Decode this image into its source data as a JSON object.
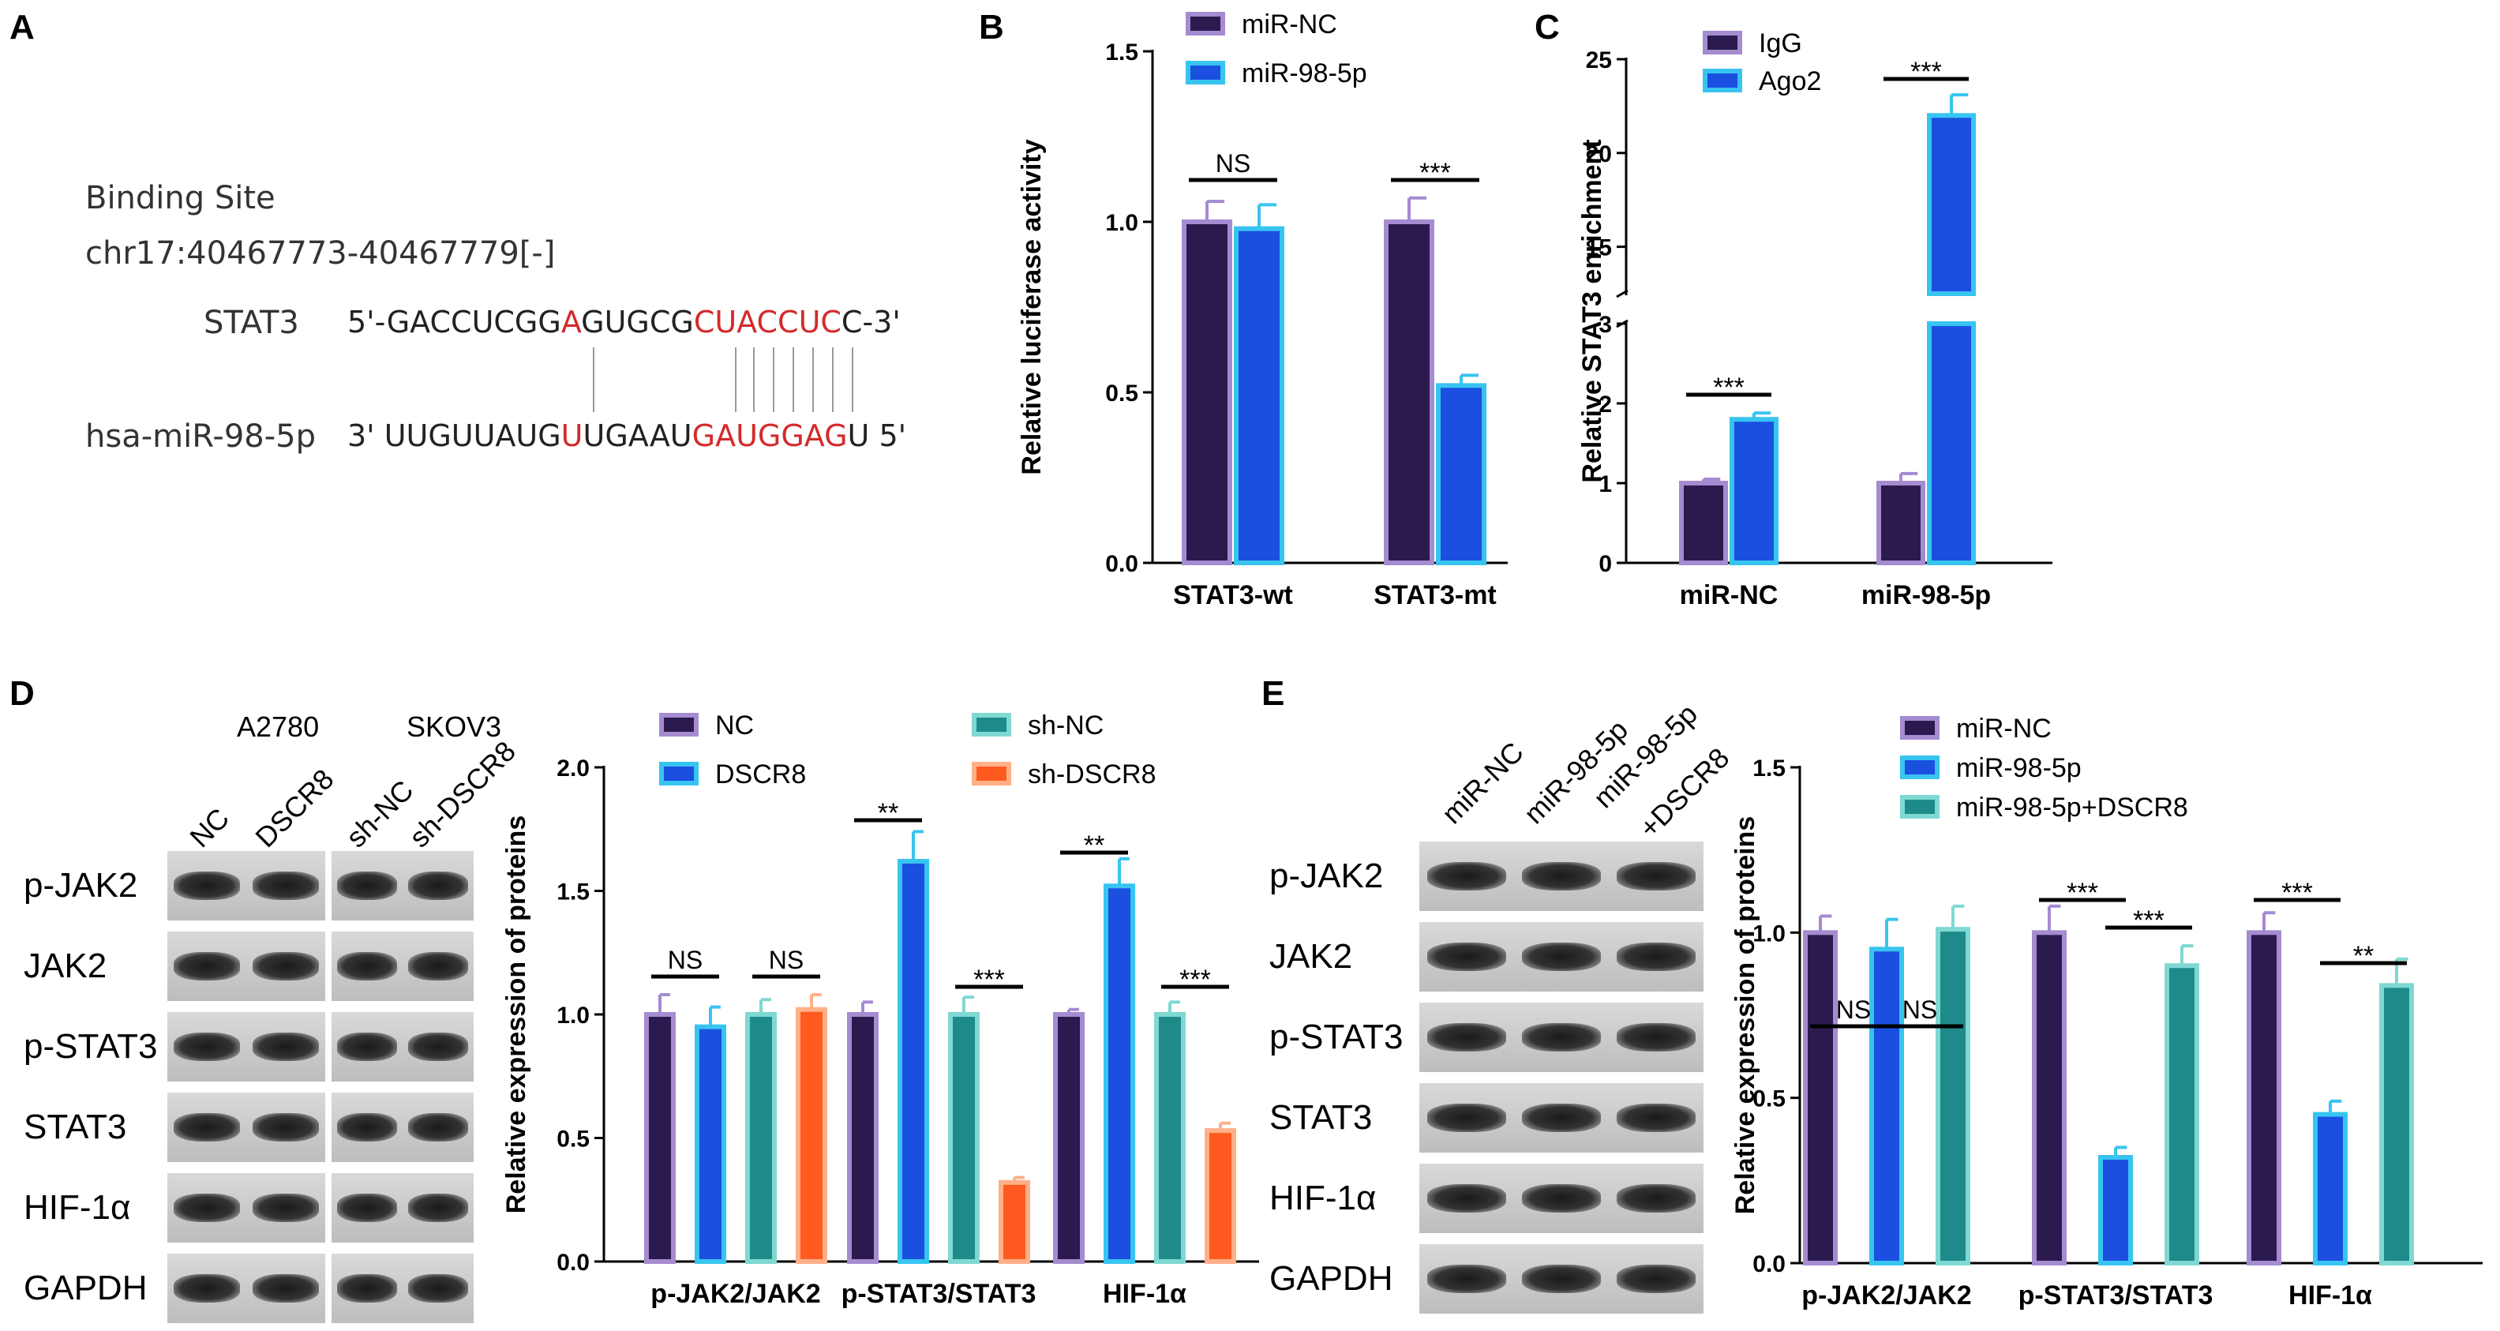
{
  "panels": {
    "A": "A",
    "B": "B",
    "C": "C",
    "D": "D",
    "E": "E"
  },
  "panelA": {
    "title": "Binding Site",
    "coords": "chr17:40467773-40467779[-]",
    "stat3_label": "STAT3",
    "stat3_seq": [
      {
        "t": "5'-GACCUCGG",
        "red": false
      },
      {
        "t": "A",
        "red": true
      },
      {
        "t": "GUGCG",
        "red": false
      },
      {
        "t": "CUACCUC",
        "red": true
      },
      {
        "t": "C-3'",
        "red": false
      }
    ],
    "mir_label": "hsa-miR-98-5p",
    "mir_seq": [
      {
        "t": "3' UUGUUAUG",
        "red": false
      },
      {
        "t": "U",
        "red": true
      },
      {
        "t": "UGAAU",
        "red": false
      },
      {
        "t": "GAUGGAG",
        "red": true
      },
      {
        "t": "U 5'",
        "red": false
      }
    ]
  },
  "panelD_blot": {
    "group1": "A2780",
    "group2": "SKOV3",
    "lanes": [
      "NC",
      "DSCR8",
      "sh-NC",
      "sh-DSCR8"
    ],
    "rows": [
      "p-JAK2",
      "JAK2",
      "p-STAT3",
      "STAT3",
      "HIF-1α",
      "GAPDH"
    ]
  },
  "panelE_blot": {
    "lanes": [
      "miR-NC",
      "miR-98-5p",
      "miR-98-5p",
      "+DSCR8"
    ],
    "rows": [
      "p-JAK2",
      "JAK2",
      "p-STAT3",
      "STAT3",
      "HIF-1α",
      "GAPDH"
    ]
  },
  "chart_data": [
    {
      "id": "B",
      "type": "bar",
      "categories": [
        "STAT3-wt",
        "STAT3-mt"
      ],
      "ylabel": "Relative luciferase activity",
      "ylim": [
        0,
        1.5
      ],
      "yticks": [
        "0.0",
        "0.5",
        "1.0",
        "1.5"
      ],
      "series": [
        {
          "name": "miR-NC",
          "values": [
            1.0,
            1.0
          ],
          "errors": [
            0.06,
            0.07
          ],
          "fill": "#2a1a4e",
          "edge": "#a58bd0"
        },
        {
          "name": "miR-98-5p",
          "values": [
            0.98,
            0.52
          ],
          "errors": [
            0.07,
            0.03
          ],
          "fill": "#1a4fe0",
          "edge": "#38c4f0"
        }
      ],
      "significance": [
        "NS",
        "***"
      ],
      "legend": "top"
    },
    {
      "id": "C",
      "type": "bar",
      "categories": [
        "miR-NC",
        "miR-98-5p"
      ],
      "ylabel": "Relative STAT3 enrichment",
      "axis_break": [
        3,
        12.5
      ],
      "yticks": [
        "0",
        "1",
        "2",
        "3",
        "15",
        "20",
        "25"
      ],
      "series": [
        {
          "name": "IgG",
          "values": [
            1.0,
            1.0
          ],
          "errors": [
            0.05,
            0.12
          ],
          "fill": "#2a1a4e",
          "edge": "#a58bd0"
        },
        {
          "name": "Ago2",
          "values": [
            1.8,
            22.0
          ],
          "errors": [
            0.08,
            1.1
          ],
          "fill": "#1a4fe0",
          "edge": "#38c4f0"
        }
      ],
      "significance": [
        "***",
        "***"
      ],
      "legend": "top-left"
    },
    {
      "id": "D",
      "type": "bar",
      "categories": [
        "p-JAK2/JAK2",
        "p-STAT3/STAT3",
        "HIF-1α"
      ],
      "ylabel": "Relative expression of proteins",
      "ylim": [
        0,
        2.0
      ],
      "yticks": [
        "0.0",
        "0.5",
        "1.0",
        "1.5",
        "2.0"
      ],
      "series": [
        {
          "name": "NC",
          "values": [
            1.0,
            1.0,
            1.0
          ],
          "errors": [
            0.08,
            0.05,
            0.02
          ],
          "fill": "#2a1a4e",
          "edge": "#a58bd0"
        },
        {
          "name": "DSCR8",
          "values": [
            0.95,
            1.62,
            1.52
          ],
          "errors": [
            0.08,
            0.12,
            0.11
          ],
          "fill": "#1a4fe0",
          "edge": "#38c4f0"
        },
        {
          "name": "sh-NC",
          "values": [
            1.0,
            1.0,
            1.0
          ],
          "errors": [
            0.06,
            0.07,
            0.05
          ],
          "fill": "#1f8a8a",
          "edge": "#7fd8d2"
        },
        {
          "name": "sh-DSCR8",
          "values": [
            1.02,
            0.32,
            0.53
          ],
          "errors": [
            0.06,
            0.02,
            0.03
          ],
          "fill": "#ff5a1f",
          "edge": "#ffb089"
        }
      ],
      "significance": [
        [
          "NS",
          "NS"
        ],
        [
          "**",
          "***"
        ],
        [
          "**",
          "***"
        ]
      ],
      "legend": "top"
    },
    {
      "id": "E",
      "type": "bar",
      "categories": [
        "p-JAK2/JAK2",
        "p-STAT3/STAT3",
        "HIF-1α"
      ],
      "ylabel": "Relative expression of proteins",
      "ylim": [
        0,
        1.5
      ],
      "yticks": [
        "0.0",
        "0.5",
        "1.0",
        "1.5"
      ],
      "series": [
        {
          "name": "miR-NC",
          "values": [
            1.0,
            1.0,
            1.0
          ],
          "errors": [
            0.05,
            0.08,
            0.06
          ],
          "fill": "#2a1a4e",
          "edge": "#a58bd0"
        },
        {
          "name": "miR-98-5p",
          "values": [
            0.95,
            0.32,
            0.45
          ],
          "errors": [
            0.09,
            0.03,
            0.04
          ],
          "fill": "#1a4fe0",
          "edge": "#38c4f0"
        },
        {
          "name": "miR-98-5p+DSCR8",
          "values": [
            1.01,
            0.9,
            0.84
          ],
          "errors": [
            0.07,
            0.06,
            0.08
          ],
          "fill": "#1f8a8a",
          "edge": "#7fd8d2"
        }
      ],
      "significance": [
        [
          "NS",
          "NS"
        ],
        [
          "***",
          "***"
        ],
        [
          "***",
          "**"
        ]
      ],
      "legend": "top-right"
    }
  ]
}
